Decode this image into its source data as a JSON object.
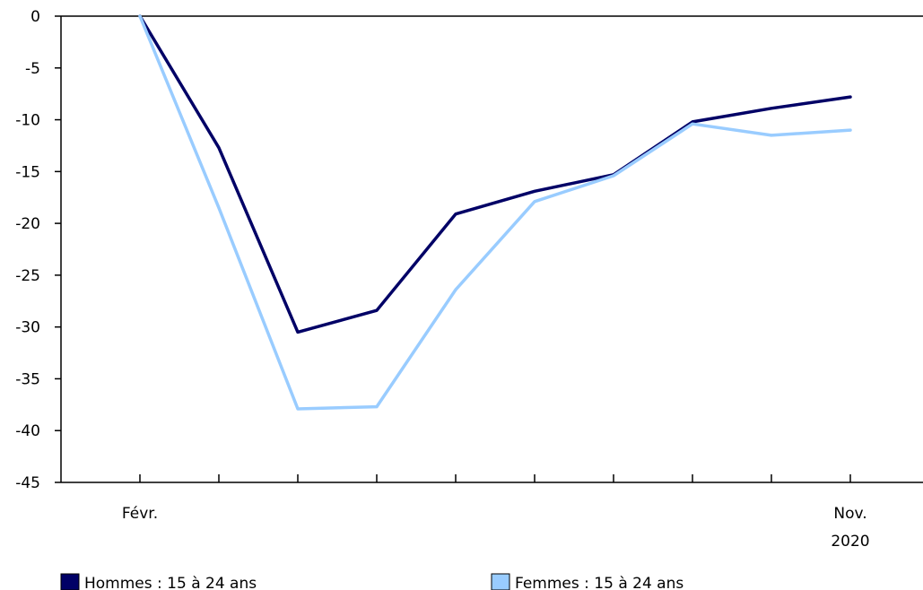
{
  "chart_data": {
    "type": "line",
    "title": "",
    "xlabel": "",
    "ylabel": "",
    "ylim": [
      -45,
      0
    ],
    "yticks": [
      0,
      -5,
      -10,
      -15,
      -20,
      -25,
      -30,
      -35,
      -40,
      -45
    ],
    "ytick_labels": [
      "0",
      "-5",
      "-10",
      "-15",
      "-20",
      "-25",
      "-30",
      "-35",
      "-40",
      "-45"
    ],
    "x_labels": [
      {
        "index": 0,
        "text": "Févr.",
        "sub": ""
      },
      {
        "index": 9,
        "text": "Nov.",
        "sub": "2020"
      }
    ],
    "x_count": 10,
    "grid": false,
    "legend_position": "bottom",
    "series": [
      {
        "name": "Hommes : 15 à 24 ans",
        "color": "#000066",
        "values": [
          0,
          -12.7,
          -30.5,
          -28.4,
          -19.1,
          -16.9,
          -15.3,
          -10.2,
          -8.9,
          -7.8
        ]
      },
      {
        "name": "Femmes : 15 à 24 ans",
        "color": "#99ccff",
        "values": [
          0,
          -18.5,
          -37.9,
          -37.7,
          -26.4,
          -17.9,
          -15.4,
          -10.4,
          -11.5,
          -11.0
        ]
      }
    ]
  }
}
